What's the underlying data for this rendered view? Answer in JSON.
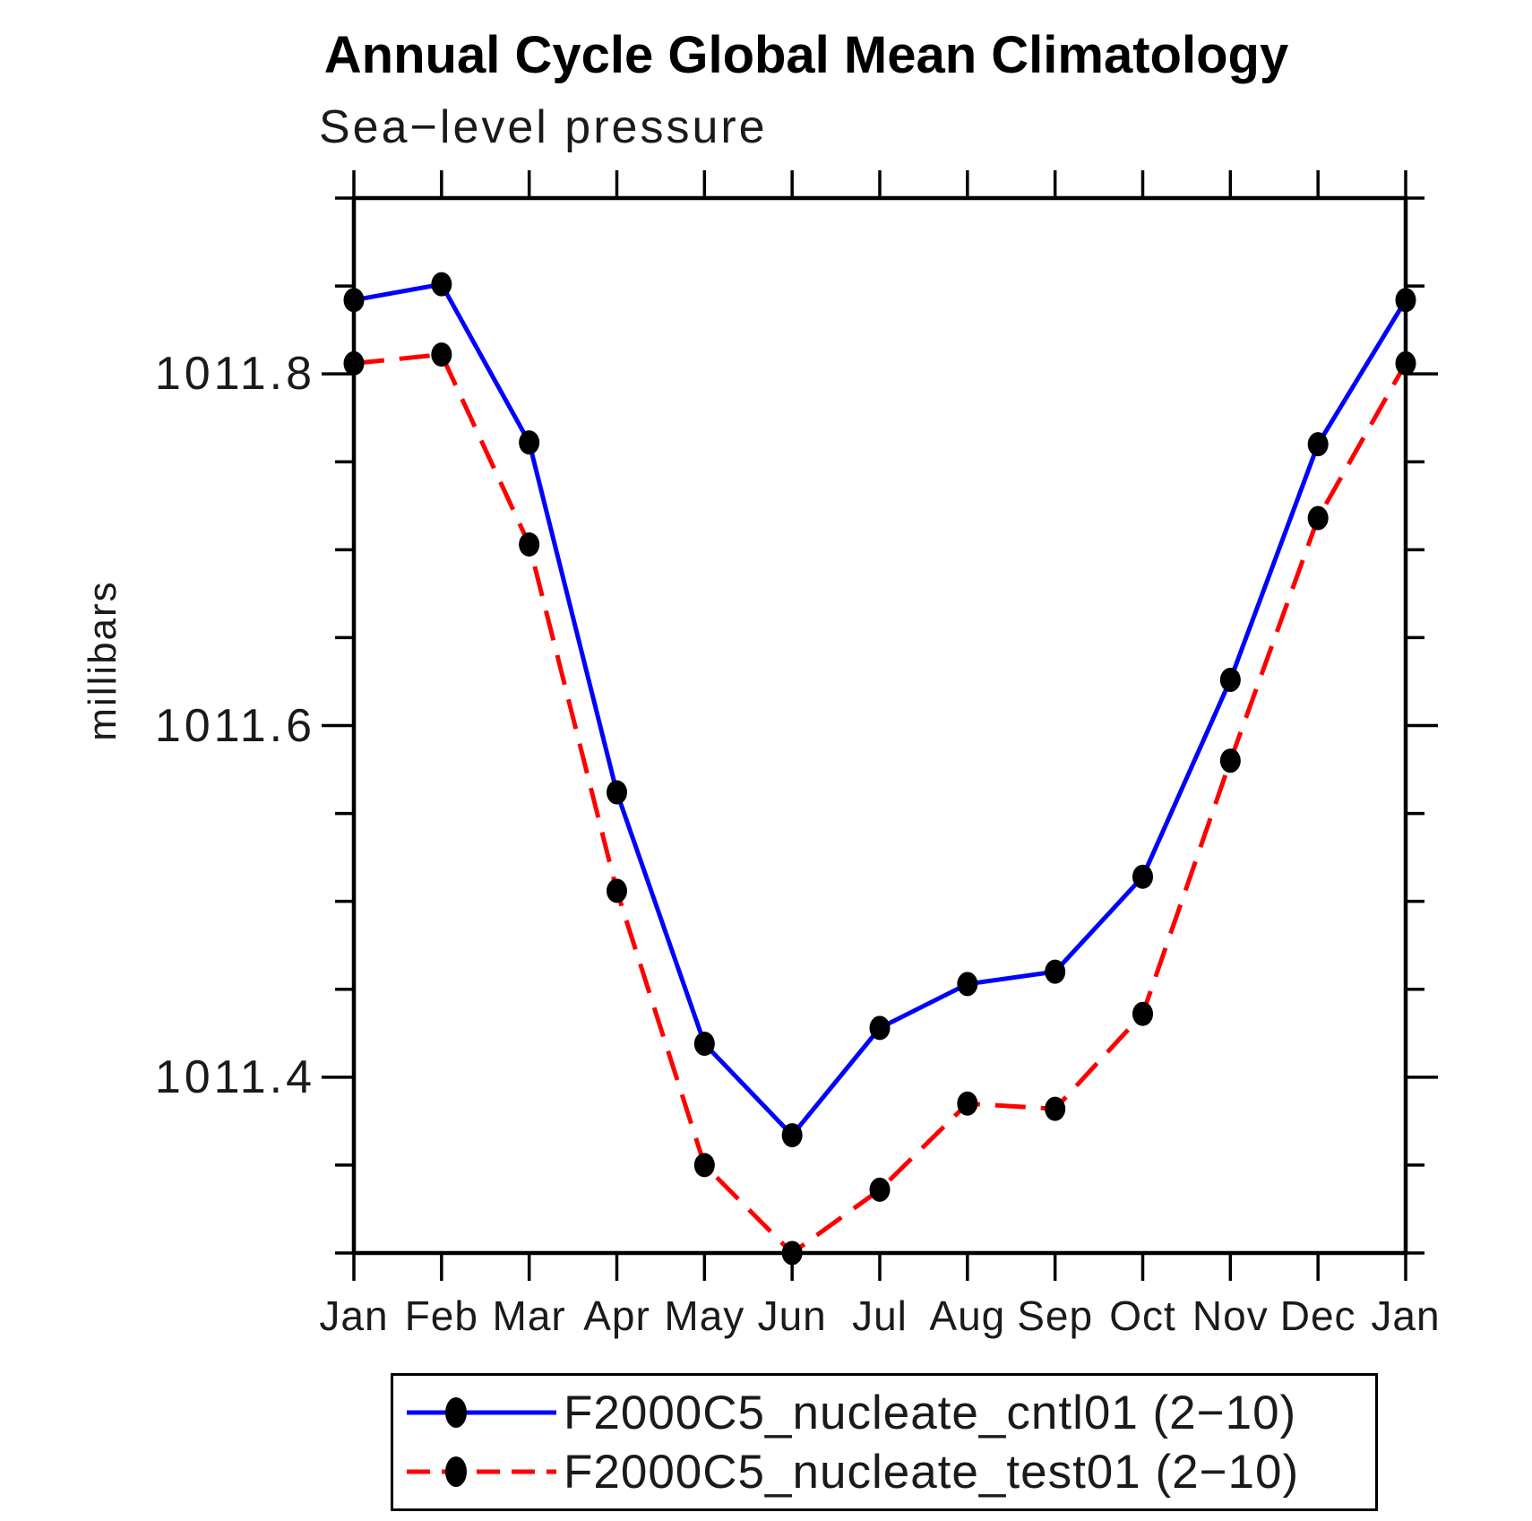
{
  "title": "Annual Cycle Global Mean Climatology",
  "subtitle": "Sea−level pressure",
  "ylabel": "millibars",
  "colors": {
    "series1": "#0000ff",
    "series2": "#ff0000",
    "axis": "#000000",
    "marker": "#000000",
    "background": "#ffffff"
  },
  "chart_data": {
    "type": "line",
    "title": "Annual Cycle Global Mean Climatology",
    "subtitle": "Sea−level pressure",
    "ylabel": "millibars",
    "xlabel": "",
    "categories": [
      "Jan",
      "Feb",
      "Mar",
      "Apr",
      "May",
      "Jun",
      "Jul",
      "Aug",
      "Sep",
      "Oct",
      "Nov",
      "Dec",
      "Jan"
    ],
    "series": [
      {
        "name": "F2000C5_nucleate_cntl01 (2−10)",
        "color": "#0000ff",
        "line_style": "solid",
        "marker": "black-filled-ellipse",
        "values": [
          1011.842,
          1011.851,
          1011.761,
          1011.562,
          1011.419,
          1011.367,
          1011.428,
          1011.453,
          1011.46,
          1011.514,
          1011.626,
          1011.76,
          1011.842
        ]
      },
      {
        "name": "F2000C5_nucleate_test01 (2−10)",
        "color": "#ff0000",
        "line_style": "dashed",
        "marker": "black-filled-ellipse",
        "values": [
          1011.806,
          1011.811,
          1011.703,
          1011.506,
          1011.35,
          1011.3,
          1011.336,
          1011.385,
          1011.382,
          1011.436,
          1011.58,
          1011.718,
          1011.806
        ]
      }
    ],
    "ylim": [
      1011.3,
      1011.9
    ],
    "ytick_labels": [
      "1011.8",
      "1011.6",
      "1011.4"
    ],
    "ytick_label_values": [
      1011.8,
      1011.6,
      1011.4
    ],
    "ytick_minor_step": 0.05,
    "units": "millibars",
    "grid": false,
    "legend_position": "bottom"
  }
}
